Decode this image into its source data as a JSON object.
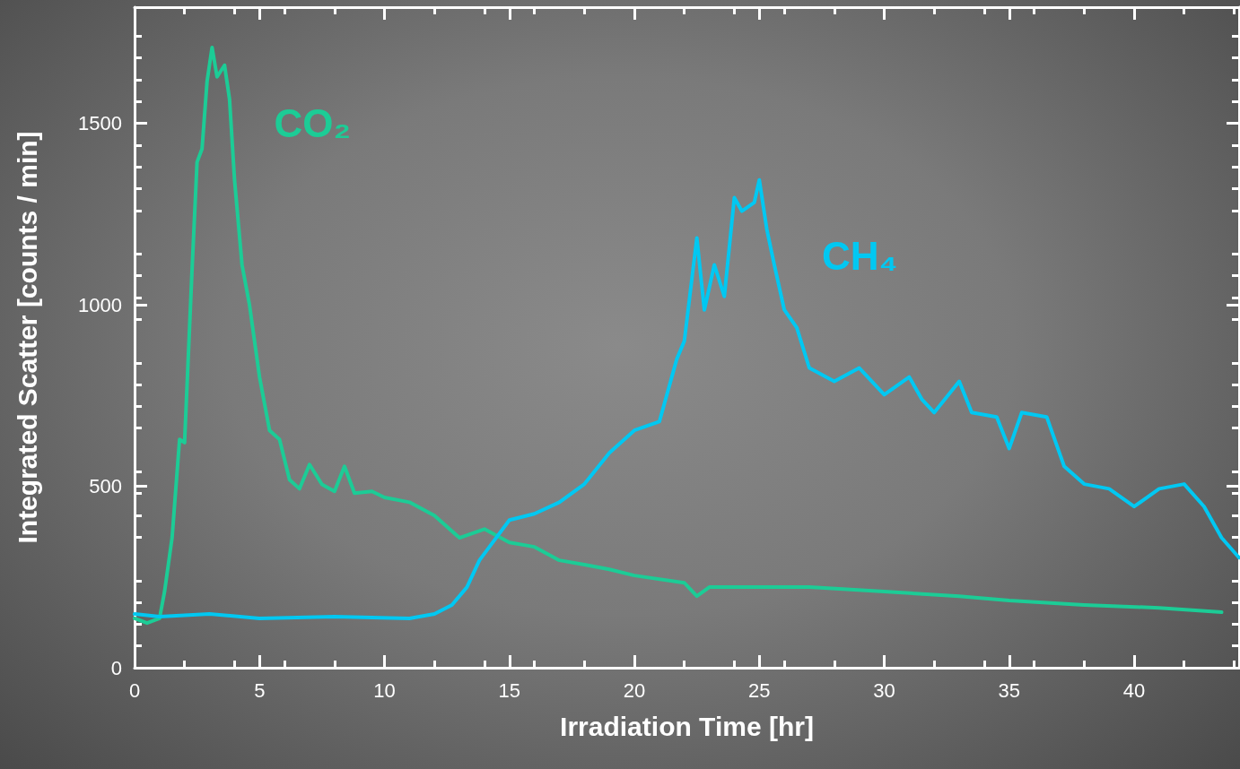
{
  "chart_data": {
    "type": "line",
    "xlabel": "Irradiation Time [hr]",
    "ylabel": "Integrated Scatter [counts / min]",
    "xlim": [
      0,
      44.2
    ],
    "ylim": [
      0,
      1820
    ],
    "xticks": [
      0,
      5,
      10,
      15,
      20,
      25,
      30,
      35,
      40
    ],
    "yticks": [
      0,
      500,
      1000,
      1500
    ],
    "grid": false,
    "marker": "none",
    "line_style": "solid",
    "series": [
      {
        "name": "CO₂",
        "color": "#1ccc96",
        "x": [
          0,
          0.5,
          1,
          1.2,
          1.5,
          1.8,
          2,
          2.3,
          2.5,
          2.7,
          2.9,
          3.1,
          3.3,
          3.6,
          3.8,
          4,
          4.3,
          4.6,
          5,
          5.4,
          5.8,
          6.2,
          6.6,
          7,
          7.5,
          8,
          8.4,
          8.8,
          9.5,
          10,
          11,
          12,
          13,
          14,
          15,
          16,
          17,
          18,
          19,
          20,
          22,
          22.5,
          23,
          25,
          27,
          30,
          33,
          35,
          38,
          41,
          43.5
        ],
        "values": [
          136,
          123,
          136,
          210,
          358,
          629,
          620,
          1097,
          1393,
          1430,
          1615,
          1709,
          1628,
          1660,
          1566,
          1344,
          1110,
          999,
          801,
          654,
          629,
          518,
          493,
          560,
          505,
          486,
          555,
          481,
          486,
          469,
          456,
          419,
          358,
          382,
          345,
          333,
          296,
          284,
          271,
          254,
          234,
          197,
          222,
          222,
          222,
          210,
          197,
          185,
          173,
          165,
          153
        ]
      },
      {
        "name": "CH₄",
        "color": "#00c8f2",
        "x": [
          0,
          1,
          3,
          5,
          8,
          11,
          12,
          12.7,
          13.3,
          13.8,
          14.2,
          15,
          16,
          17,
          18,
          19,
          20,
          21,
          21.7,
          22,
          22.5,
          22.8,
          23.2,
          23.6,
          24,
          24.3,
          24.8,
          25,
          25.3,
          25.6,
          26,
          26.5,
          27,
          28,
          29,
          30,
          31,
          31.5,
          32,
          33,
          33.5,
          34.5,
          35,
          35.5,
          36.5,
          37.2,
          38,
          39,
          40,
          41,
          42,
          42.8,
          43.5,
          44.2
        ],
        "values": [
          148,
          141,
          148,
          136,
          141,
          136,
          148,
          173,
          222,
          296,
          333,
          407,
          424,
          456,
          506,
          592,
          654,
          678,
          851,
          900,
          1184,
          986,
          1110,
          1023,
          1295,
          1258,
          1282,
          1344,
          1208,
          1110,
          986,
          937,
          826,
          789,
          826,
          752,
          801,
          740,
          703,
          789,
          703,
          691,
          604,
          703,
          691,
          555,
          506,
          493,
          444,
          493,
          506,
          444,
          358,
          303
        ]
      }
    ]
  }
}
